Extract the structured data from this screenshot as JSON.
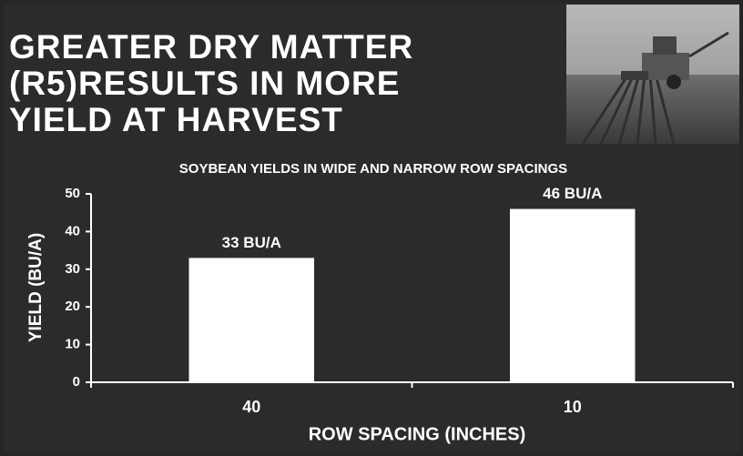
{
  "slide": {
    "heading": [
      "GREATER DRY MATTER",
      "(R5)RESULTS IN MORE",
      "YIELD AT HARVEST"
    ]
  },
  "chart_data": {
    "type": "bar",
    "title": "SOYBEAN YIELDS IN WIDE AND NARROW ROW SPACINGS",
    "x_label": "ROW SPACING (INCHES)",
    "y_label": "YIELD (BU/A)",
    "categories": [
      "40",
      "10"
    ],
    "values": [
      33,
      46
    ],
    "value_labels": [
      "33 BU/A",
      "46 BU/A"
    ],
    "color": "#ffffff",
    "ylim": [
      0,
      50
    ],
    "yticks": [
      0,
      10,
      20,
      30,
      40,
      50
    ],
    "grid": false
  }
}
